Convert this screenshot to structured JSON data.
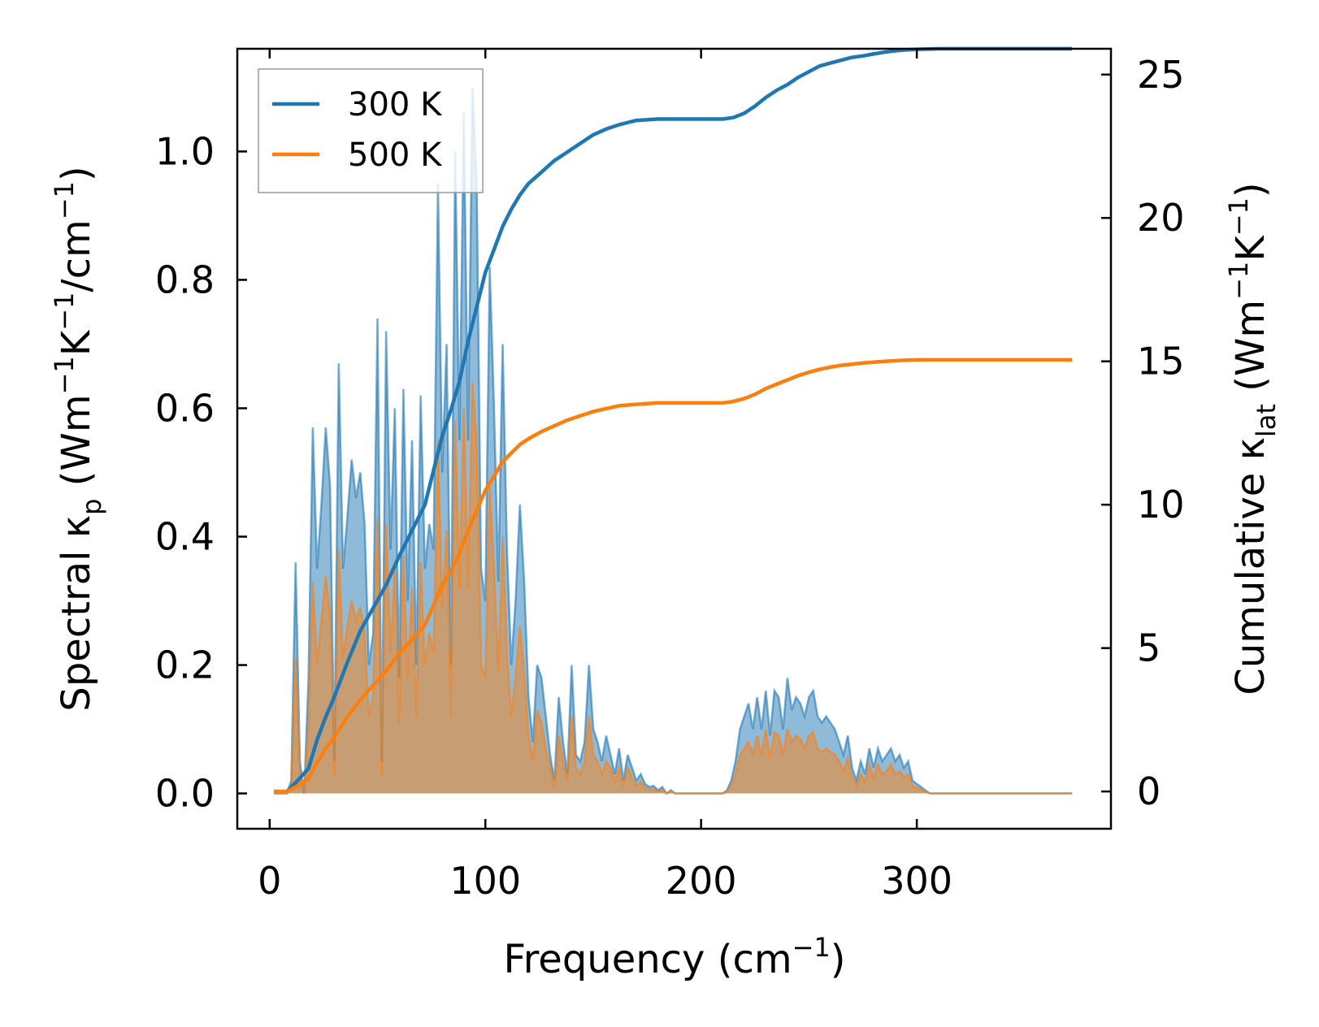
{
  "chart_data": {
    "type": "line",
    "title": "",
    "xlabel": "Frequency",
    "xlabel_unit_base": "(cm",
    "xlabel_unit_exp": "−1",
    "xlabel_unit_close": ")",
    "ylabel_left": {
      "text": "Spectral κ",
      "sub": "p",
      "unit_open": " (Wm",
      "exp1": "−1",
      "unit_mid": "K",
      "exp2": "−1",
      "unit_mid2": "/cm",
      "exp3": "−1",
      "unit_close": ")"
    },
    "ylabel_right": {
      "text": "Cumulative κ",
      "sub": "lat",
      "unit_open": " (Wm",
      "exp1": "−1",
      "unit_mid": "K",
      "exp2": "−1",
      "unit_close": ")"
    },
    "xlim": [
      -15,
      390
    ],
    "ylim_left": [
      -0.055,
      1.16
    ],
    "ylim_right": [
      -1.3,
      25.9
    ],
    "xticks": [
      0,
      100,
      200,
      300
    ],
    "xtick_labels": [
      "0",
      "100",
      "200",
      "300"
    ],
    "yticks_left": [
      0.0,
      0.2,
      0.4,
      0.6,
      0.8,
      1.0
    ],
    "ytick_labels_left": [
      "0.0",
      "0.2",
      "0.4",
      "0.6",
      "0.8",
      "1.0"
    ],
    "yticks_right": [
      0,
      5,
      10,
      15,
      20,
      25
    ],
    "ytick_labels_right": [
      "0",
      "5",
      "10",
      "15",
      "20",
      "25"
    ],
    "legend": {
      "placement": "top-left",
      "entries": [
        "300 K",
        "500 K"
      ]
    },
    "colors": {
      "series_300": "#1f77b4",
      "series_500": "#ff7f0e",
      "fill_300": "#1f77b4",
      "fill_500": "#ff7f0e"
    },
    "spectral_x": [
      2,
      5,
      8,
      10,
      12,
      14,
      16,
      18,
      20,
      22,
      24,
      26,
      28,
      30,
      32,
      34,
      36,
      38,
      40,
      42,
      44,
      46,
      48,
      50,
      52,
      54,
      56,
      58,
      60,
      62,
      64,
      66,
      68,
      70,
      72,
      74,
      76,
      78,
      80,
      82,
      84,
      86,
      88,
      90,
      92,
      94,
      96,
      98,
      100,
      102,
      104,
      106,
      108,
      110,
      112,
      114,
      116,
      118,
      120,
      122,
      124,
      126,
      128,
      130,
      132,
      134,
      136,
      138,
      140,
      142,
      144,
      146,
      148,
      150,
      152,
      154,
      156,
      158,
      160,
      162,
      164,
      166,
      168,
      170,
      172,
      174,
      176,
      178,
      180,
      182,
      184,
      186,
      188,
      190,
      195,
      200,
      205,
      210,
      212,
      214,
      216,
      218,
      220,
      222,
      224,
      226,
      228,
      230,
      232,
      234,
      236,
      238,
      240,
      242,
      244,
      246,
      248,
      250,
      252,
      254,
      256,
      258,
      260,
      262,
      264,
      266,
      268,
      270,
      272,
      274,
      276,
      278,
      280,
      282,
      284,
      286,
      288,
      290,
      292,
      294,
      296,
      298,
      300,
      302,
      304,
      306,
      308,
      310,
      320,
      340,
      360,
      372
    ],
    "spectral_300": [
      0,
      0,
      0,
      0.02,
      0.36,
      0.05,
      0,
      0.18,
      0.57,
      0.35,
      0.45,
      0.57,
      0.48,
      0.05,
      0.67,
      0.35,
      0.43,
      0.52,
      0.46,
      0.5,
      0.42,
      0.2,
      0.25,
      0.74,
      0.05,
      0.72,
      0.38,
      0.6,
      0.18,
      0.63,
      0.3,
      0.55,
      0.2,
      0.62,
      0.35,
      0.42,
      0.38,
      0.95,
      0.5,
      0.7,
      0.2,
      1.0,
      0.55,
      1.06,
      0.55,
      1.1,
      0.95,
      0.35,
      0.3,
      0.82,
      0.6,
      0.33,
      0.7,
      0.38,
      0.2,
      0.3,
      0.45,
      0.33,
      0.15,
      0.08,
      0.2,
      0.18,
      0.12,
      0.06,
      0.02,
      0.15,
      0.08,
      0.03,
      0.2,
      0.06,
      0.05,
      0.08,
      0.2,
      0.1,
      0.08,
      0.05,
      0.09,
      0.06,
      0.03,
      0.07,
      0.02,
      0.06,
      0.04,
      0.02,
      0.03,
      0.015,
      0.01,
      0.012,
      0.005,
      0.01,
      0,
      0.005,
      0,
      0,
      0,
      0,
      0,
      0,
      0.005,
      0.02,
      0.05,
      0.1,
      0.12,
      0.14,
      0.1,
      0.15,
      0.1,
      0.16,
      0.09,
      0.16,
      0.15,
      0.1,
      0.18,
      0.13,
      0.15,
      0.14,
      0.12,
      0.15,
      0.16,
      0.12,
      0.11,
      0.12,
      0.11,
      0.1,
      0.08,
      0.06,
      0.09,
      0.04,
      0.02,
      0.05,
      0.03,
      0.07,
      0.04,
      0.07,
      0.05,
      0.06,
      0.07,
      0.05,
      0.06,
      0.04,
      0.05,
      0.02,
      0.015,
      0.01,
      0.005,
      0,
      0,
      0,
      0,
      0,
      0,
      0
    ],
    "spectral_500": [
      0,
      0,
      0,
      0.01,
      0.21,
      0.03,
      0,
      0.1,
      0.33,
      0.2,
      0.27,
      0.34,
      0.28,
      0.03,
      0.38,
      0.21,
      0.26,
      0.3,
      0.27,
      0.29,
      0.25,
      0.12,
      0.15,
      0.43,
      0.03,
      0.42,
      0.22,
      0.35,
      0.11,
      0.37,
      0.18,
      0.32,
      0.12,
      0.36,
      0.2,
      0.25,
      0.22,
      0.55,
      0.29,
      0.41,
      0.12,
      0.58,
      0.32,
      0.6,
      0.32,
      0.64,
      0.55,
      0.2,
      0.18,
      0.48,
      0.35,
      0.19,
      0.4,
      0.22,
      0.12,
      0.18,
      0.26,
      0.19,
      0.09,
      0.05,
      0.13,
      0.11,
      0.07,
      0.04,
      0.01,
      0.09,
      0.05,
      0.02,
      0.12,
      0.04,
      0.03,
      0.05,
      0.12,
      0.06,
      0.05,
      0.03,
      0.05,
      0.04,
      0.02,
      0.04,
      0.01,
      0.04,
      0.025,
      0.012,
      0.018,
      0.009,
      0.006,
      0.007,
      0.003,
      0.006,
      0,
      0.003,
      0,
      0,
      0,
      0,
      0,
      0,
      0.003,
      0.012,
      0.03,
      0.06,
      0.07,
      0.08,
      0.06,
      0.09,
      0.06,
      0.1,
      0.055,
      0.095,
      0.09,
      0.06,
      0.1,
      0.08,
      0.09,
      0.085,
      0.07,
      0.09,
      0.095,
      0.07,
      0.065,
      0.07,
      0.065,
      0.06,
      0.05,
      0.035,
      0.055,
      0.025,
      0.012,
      0.03,
      0.018,
      0.045,
      0.025,
      0.045,
      0.03,
      0.035,
      0.045,
      0.03,
      0.035,
      0.025,
      0.03,
      0.012,
      0.009,
      0.006,
      0.003,
      0,
      0,
      0,
      0,
      0,
      0,
      0
    ],
    "cumulative_x": [
      2,
      8,
      12,
      18,
      22,
      26,
      30,
      36,
      42,
      48,
      54,
      60,
      66,
      72,
      76,
      80,
      84,
      88,
      92,
      96,
      100,
      104,
      108,
      112,
      116,
      120,
      126,
      132,
      138,
      144,
      150,
      156,
      162,
      170,
      180,
      190,
      200,
      210,
      215,
      220,
      225,
      230,
      235,
      240,
      245,
      250,
      255,
      260,
      265,
      270,
      275,
      280,
      285,
      290,
      295,
      300,
      305,
      310,
      320,
      340,
      360,
      372
    ],
    "cumulative_300": [
      0,
      0,
      0.3,
      0.8,
      1.8,
      2.6,
      3.3,
      4.5,
      5.6,
      6.4,
      7.2,
      8.2,
      9.1,
      10.0,
      11.2,
      12.4,
      13.3,
      14.3,
      15.7,
      16.9,
      18.1,
      18.9,
      19.7,
      20.3,
      20.8,
      21.2,
      21.6,
      22.0,
      22.3,
      22.6,
      22.9,
      23.1,
      23.25,
      23.4,
      23.45,
      23.45,
      23.45,
      23.45,
      23.5,
      23.65,
      23.9,
      24.2,
      24.45,
      24.65,
      24.9,
      25.1,
      25.3,
      25.4,
      25.5,
      25.6,
      25.65,
      25.72,
      25.78,
      25.83,
      25.86,
      25.88,
      25.89,
      25.9,
      25.9,
      25.9,
      25.9,
      25.9
    ],
    "cumulative_500": [
      0,
      0,
      0.15,
      0.45,
      1.0,
      1.5,
      1.9,
      2.6,
      3.2,
      3.7,
      4.2,
      4.8,
      5.3,
      5.8,
      6.5,
      7.2,
      7.7,
      8.3,
      9.1,
      9.8,
      10.5,
      11.0,
      11.5,
      11.8,
      12.1,
      12.3,
      12.55,
      12.75,
      12.95,
      13.1,
      13.25,
      13.35,
      13.45,
      13.5,
      13.55,
      13.55,
      13.55,
      13.55,
      13.6,
      13.7,
      13.85,
      14.05,
      14.2,
      14.35,
      14.5,
      14.62,
      14.72,
      14.8,
      14.86,
      14.9,
      14.94,
      14.97,
      15.0,
      15.02,
      15.04,
      15.05,
      15.05,
      15.05,
      15.05,
      15.05,
      15.05,
      15.05
    ]
  }
}
